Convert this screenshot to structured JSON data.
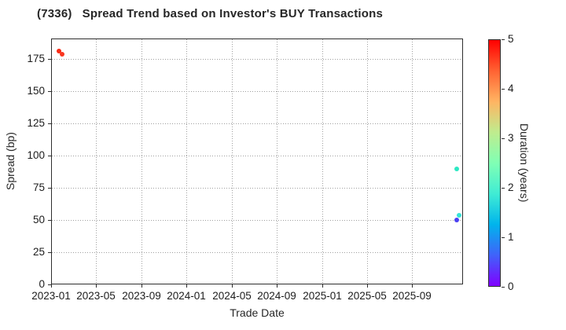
{
  "chart_data": {
    "type": "scatter",
    "title": "(7336)   Spread Trend based on Investor's BUY Transactions",
    "xlabel": "Trade Date",
    "ylabel": "Spread (bp)",
    "grid": true,
    "ylim": [
      0,
      191
    ],
    "y_ticks": [
      0,
      25,
      50,
      75,
      100,
      125,
      150,
      175
    ],
    "xlim_months": [
      0,
      36.5
    ],
    "x_ticks": [
      {
        "label": "2023-01",
        "month": 0
      },
      {
        "label": "2023-05",
        "month": 4
      },
      {
        "label": "2023-09",
        "month": 8
      },
      {
        "label": "2024-01",
        "month": 12
      },
      {
        "label": "2024-05",
        "month": 16
      },
      {
        "label": "2024-09",
        "month": 20
      },
      {
        "label": "2025-01",
        "month": 24
      },
      {
        "label": "2025-05",
        "month": 28
      },
      {
        "label": "2025-09",
        "month": 32
      }
    ],
    "points": [
      {
        "approx_date": "2023-01-22",
        "month": 0.7,
        "spread_bp": 181,
        "duration_years": 5.0,
        "color": "#f92a14"
      },
      {
        "approx_date": "2023-01-30",
        "month": 0.97,
        "spread_bp": 179,
        "duration_years": 4.9,
        "color": "#f9361f"
      },
      {
        "approx_date": "2025-12-28",
        "month": 35.94,
        "spread_bp": 90,
        "duration_years": 2.1,
        "color": "#2de8c3"
      },
      {
        "approx_date": "2026-01-02",
        "month": 36.15,
        "spread_bp": 54,
        "duration_years": 1.8,
        "color": "#35e3d8"
      },
      {
        "approx_date": "2025-12-28",
        "month": 35.95,
        "spread_bp": 50,
        "duration_years": 0.4,
        "color": "#4b40f2"
      }
    ],
    "colorbar": {
      "label": "Duration (years)",
      "colormap": "rainbow",
      "min": 0,
      "max": 5,
      "ticks": [
        0,
        1,
        2,
        3,
        4,
        5
      ],
      "gradient_stops": [
        "#8000ff",
        "#4062fa",
        "#00b4ec",
        "#40ecd4",
        "#80ffb4",
        "#bfec8e",
        "#ffb462",
        "#ff6232",
        "#ff0000"
      ]
    }
  }
}
